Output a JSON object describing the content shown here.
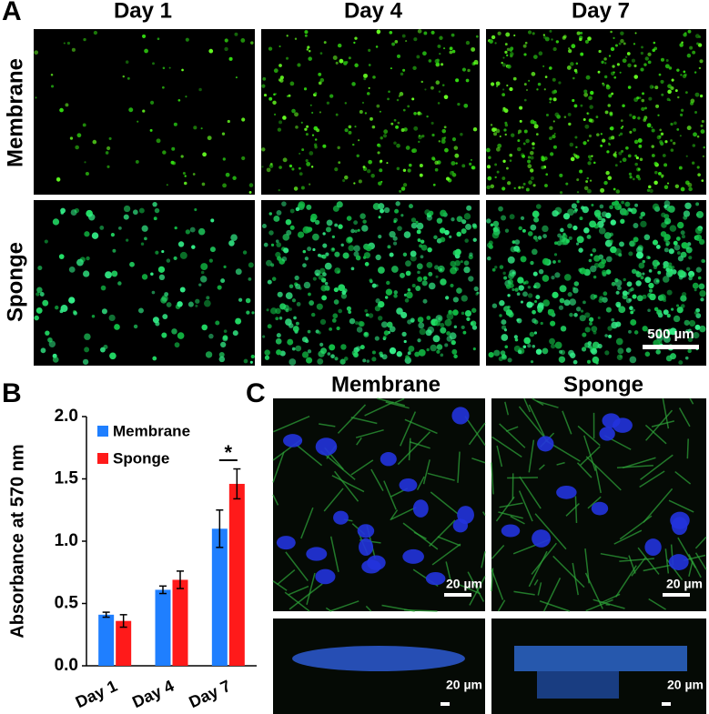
{
  "panels": {
    "A": {
      "label": "A",
      "columns": [
        "Day 1",
        "Day 4",
        "Day 7"
      ],
      "rows": [
        "Membrane",
        "Sponge"
      ],
      "scale_bar": "500 µm"
    },
    "B": {
      "label": "B"
    },
    "C": {
      "label": "C",
      "columns": [
        "Membrane",
        "Sponge"
      ],
      "scale_bar": "20 µm"
    }
  },
  "chart_data": {
    "type": "bar",
    "ylabel": "Absorbance at 570 nm",
    "categories": [
      "Day 1",
      "Day 4",
      "Day 7"
    ],
    "series": [
      {
        "name": "Membrane",
        "color": "#1f7fff",
        "values": [
          0.41,
          0.61,
          1.1
        ],
        "errors": [
          0.02,
          0.03,
          0.15
        ]
      },
      {
        "name": "Sponge",
        "color": "#ff1a1a",
        "values": [
          0.36,
          0.69,
          1.46
        ],
        "errors": [
          0.05,
          0.07,
          0.12
        ]
      }
    ],
    "ylim": [
      0,
      2
    ],
    "yticks": [
      {
        "value": 0,
        "label": "0.0"
      },
      {
        "value": 0.5,
        "label": "0.5"
      },
      {
        "value": 1,
        "label": "1.0"
      },
      {
        "value": 1.5,
        "label": "1.5"
      },
      {
        "value": 2,
        "label": "2.0"
      }
    ],
    "annotation": "*"
  }
}
